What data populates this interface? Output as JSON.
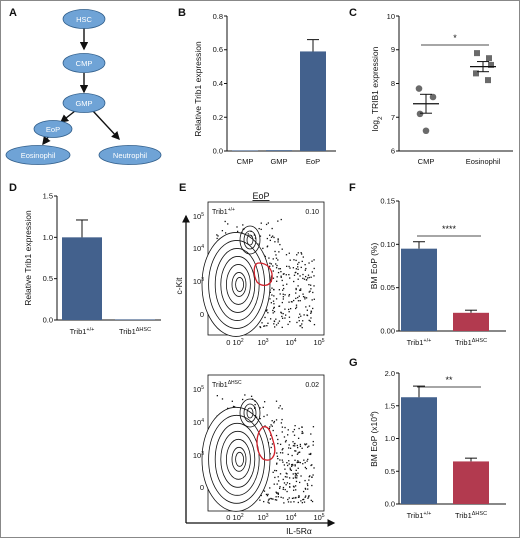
{
  "panels": {
    "A": {
      "label": "A",
      "nodes": [
        "HSC",
        "CMP",
        "GMP",
        "EoP",
        "Eosinophil",
        "Neutrophil"
      ]
    },
    "B": {
      "label": "B",
      "ylabel": "Relative Trib1 expression",
      "yticks": [
        "0.0",
        "0.2",
        "0.4",
        "0.6",
        "0.8"
      ],
      "categories": [
        "CMP",
        "GMP",
        "EoP"
      ]
    },
    "C": {
      "label": "C",
      "ylabel": "log",
      "ylabel_sub": "2",
      "ylabel_rest": " TRIB1 expression",
      "yticks": [
        "6",
        "7",
        "8",
        "9",
        "10"
      ],
      "categories": [
        "CMP",
        "Eosinophil"
      ],
      "sig": "*"
    },
    "D": {
      "label": "D",
      "ylabel": "Relative Trib1 expression",
      "yticks": [
        "0.0",
        "0.5",
        "1.0",
        "1.5"
      ],
      "cat1_base": "Trib1",
      "cat1_sup": "+/+",
      "cat2_base": "Trib1",
      "cat2_sup": "ΔHSC"
    },
    "E": {
      "label": "E",
      "title": "EoP",
      "ylabel": "c-Kit",
      "xlabel": "IL-5Rα",
      "top_base": "Trib1",
      "top_sup": "+/+",
      "top_freq": "0.10",
      "bot_base": "Trib1",
      "bot_sup": "ΔHSC",
      "bot_freq": "0.02",
      "ticks_mant": "10",
      "ticks_exp": [
        "5",
        "4",
        "3"
      ],
      "tick_zero": "0",
      "xticks_first": "0 10",
      "xticks_first_exp": "2"
    },
    "F": {
      "label": "F",
      "ylabel": "BM EoP (%)",
      "yticks": [
        "0.00",
        "0.05",
        "0.10",
        "0.15"
      ],
      "sig": "****",
      "cat1_base": "Trib1",
      "cat1_sup": "+/+",
      "cat2_base": "Trib1",
      "cat2_sup": "ΔHSC"
    },
    "G": {
      "label": "G",
      "ylabel": "BM EoP (x10",
      "ylabel_sup": "4",
      "ylabel_end": ")",
      "yticks": [
        "0.0",
        "0.5",
        "1.0",
        "1.5",
        "2.0"
      ],
      "sig": "**",
      "cat1_base": "Trib1",
      "cat1_sup": "+/+",
      "cat2_base": "Trib1",
      "cat2_sup": "ΔHSC"
    }
  },
  "colors": {
    "wt": "#43618d",
    "ko": "#b23a4f",
    "node": "#6fa3d6",
    "gate": "#d0202a"
  },
  "chart_data": [
    {
      "panel": "B",
      "type": "bar",
      "categories": [
        "CMP",
        "GMP",
        "EoP"
      ],
      "values": [
        0.0,
        0.005,
        0.59
      ],
      "errors": [
        0.0,
        0.0,
        0.07
      ],
      "ylabel": "Relative Trib1 expression",
      "ylim": [
        0,
        0.8
      ]
    },
    {
      "panel": "C",
      "type": "scatter",
      "categories": [
        "CMP",
        "Eosinophil"
      ],
      "points": [
        [
          7.85,
          7.6,
          7.1,
          6.6
        ],
        [
          8.9,
          8.75,
          8.55,
          8.3,
          8.1
        ]
      ],
      "means": [
        7.4,
        8.5
      ],
      "sem": [
        0.28,
        0.15
      ],
      "ylabel": "log2 TRIB1 expression",
      "ylim": [
        6,
        10
      ]
    },
    {
      "panel": "D",
      "type": "bar",
      "categories": [
        "Trib1+/+",
        "Trib1ΔHSC"
      ],
      "values": [
        1.0,
        0.0
      ],
      "errors": [
        0.21,
        0.0
      ],
      "ylabel": "Relative Trib1 expression",
      "ylim": [
        0,
        1.5
      ]
    },
    {
      "panel": "F",
      "type": "bar",
      "categories": [
        "Trib1+/+",
        "Trib1ΔHSC"
      ],
      "values": [
        0.095,
        0.021
      ],
      "errors": [
        0.008,
        0.003
      ],
      "ylabel": "BM EoP (%)",
      "ylim": [
        0,
        0.15
      ]
    },
    {
      "panel": "G",
      "type": "bar",
      "categories": [
        "Trib1+/+",
        "Trib1ΔHSC"
      ],
      "values": [
        1.63,
        0.65
      ],
      "errors": [
        0.17,
        0.05
      ],
      "ylabel": "BM EoP (x10^4)",
      "ylim": [
        0,
        2.0
      ]
    }
  ]
}
